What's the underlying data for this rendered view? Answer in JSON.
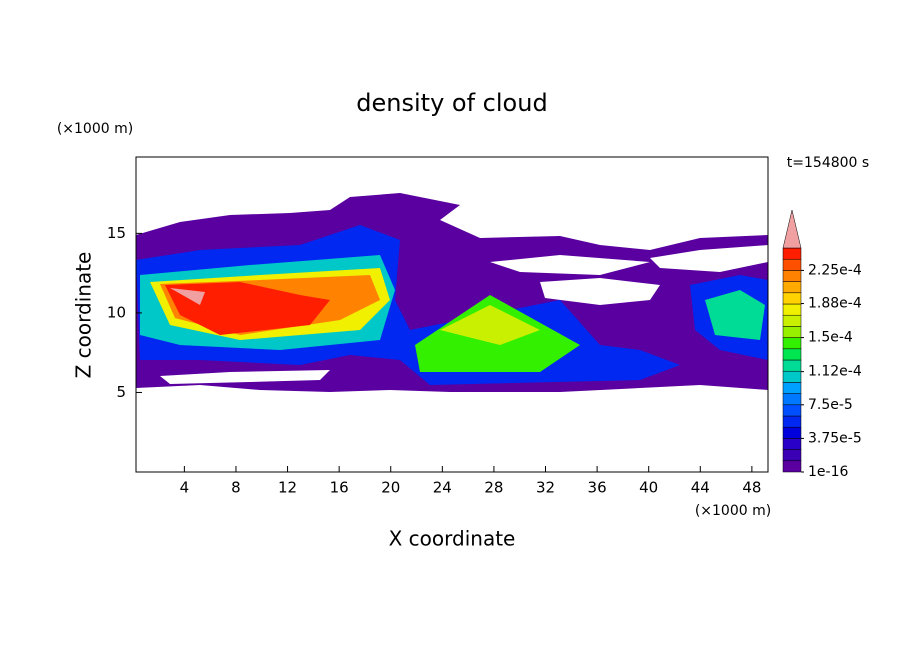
{
  "chart_data": {
    "type": "contour",
    "title": "density of cloud",
    "x_label": "X coordinate",
    "y_label": "Z coordinate",
    "x_unit": "(×1000 m)",
    "y_unit": "(×1000 m)",
    "time_label": "t=154800 s",
    "xlim": [
      0.25,
      49.25
    ],
    "ylim": [
      0,
      19.8
    ],
    "xticks": [
      4,
      8,
      12,
      16,
      20,
      24,
      28,
      32,
      36,
      40,
      44,
      48
    ],
    "yticks": [
      5,
      10,
      15
    ],
    "colorbar_ticks": [
      1e-16,
      {
        "value": 3.75e-05,
        "label": "3.75e-5"
      },
      {
        "value": 7.5e-05,
        "label": "7.5e-5"
      },
      {
        "value": 0.000112,
        "label": "1.12e-4"
      },
      {
        "value": 0.00015,
        "label": "1.5e-4"
      },
      {
        "value": 0.000188,
        "label": "1.88e-4"
      },
      {
        "value": 0.000225,
        "label": "2.25e-4"
      }
    ],
    "colorbar_colors": [
      "#5a00a0",
      "#3c00b4",
      "#2800c8",
      "#0000dc",
      "#0028f0",
      "#0050ff",
      "#0078ff",
      "#00a0ff",
      "#00c8c8",
      "#00dc96",
      "#00e650",
      "#32f000",
      "#96f000",
      "#c8f000",
      "#f0f000",
      "#ffd200",
      "#ffaa00",
      "#ff8200",
      "#ff5000",
      "#ff1e00"
    ],
    "overflow_color": "#f0a0a0"
  }
}
